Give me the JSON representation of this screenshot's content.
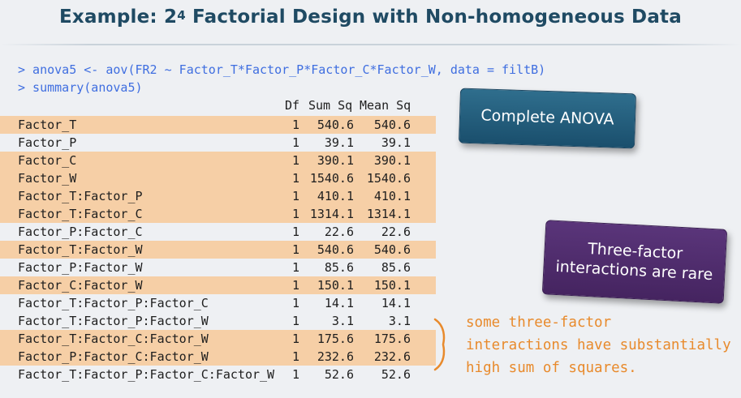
{
  "slide": {
    "title_prefix": "Example: 2",
    "title_exponent": "4",
    "title_suffix": " Factorial Design with Non-homogeneous Data"
  },
  "console": {
    "command1": "> anova5 <- aov(FR2 ~ Factor_T*Factor_P*Factor_C*Factor_W, data = filtB)",
    "command2": "> summary(anova5)",
    "columns": {
      "df": "Df",
      "sum_sq": "Sum Sq",
      "mean_sq": "Mean Sq"
    },
    "rows": [
      {
        "term": "Factor_T",
        "df": "1",
        "sum_sq": "540.6",
        "mean_sq": "540.6",
        "highlighted": true
      },
      {
        "term": "Factor_P",
        "df": "1",
        "sum_sq": "39.1",
        "mean_sq": "39.1",
        "highlighted": false
      },
      {
        "term": "Factor_C",
        "df": "1",
        "sum_sq": "390.1",
        "mean_sq": "390.1",
        "highlighted": true
      },
      {
        "term": "Factor_W",
        "df": "1",
        "sum_sq": "1540.6",
        "mean_sq": "1540.6",
        "highlighted": true
      },
      {
        "term": "Factor_T:Factor_P",
        "df": "1",
        "sum_sq": "410.1",
        "mean_sq": "410.1",
        "highlighted": true
      },
      {
        "term": "Factor_T:Factor_C",
        "df": "1",
        "sum_sq": "1314.1",
        "mean_sq": "1314.1",
        "highlighted": true
      },
      {
        "term": "Factor_P:Factor_C",
        "df": "1",
        "sum_sq": "22.6",
        "mean_sq": "22.6",
        "highlighted": false
      },
      {
        "term": "Factor_T:Factor_W",
        "df": "1",
        "sum_sq": "540.6",
        "mean_sq": "540.6",
        "highlighted": true
      },
      {
        "term": "Factor_P:Factor_W",
        "df": "1",
        "sum_sq": "85.6",
        "mean_sq": "85.6",
        "highlighted": false
      },
      {
        "term": "Factor_C:Factor_W",
        "df": "1",
        "sum_sq": "150.1",
        "mean_sq": "150.1",
        "highlighted": true
      },
      {
        "term": "Factor_T:Factor_P:Factor_C",
        "df": "1",
        "sum_sq": "14.1",
        "mean_sq": "14.1",
        "highlighted": false
      },
      {
        "term": "Factor_T:Factor_P:Factor_W",
        "df": "1",
        "sum_sq": "3.1",
        "mean_sq": "3.1",
        "highlighted": false
      },
      {
        "term": "Factor_T:Factor_C:Factor_W",
        "df": "1",
        "sum_sq": "175.6",
        "mean_sq": "175.6",
        "highlighted": true
      },
      {
        "term": "Factor_P:Factor_C:Factor_W",
        "df": "1",
        "sum_sq": "232.6",
        "mean_sq": "232.6",
        "highlighted": true
      },
      {
        "term": "Factor_T:Factor_P:Factor_C:Factor_W",
        "df": "1",
        "sum_sq": "52.6",
        "mean_sq": "52.6",
        "highlighted": false
      }
    ]
  },
  "callouts": {
    "complete_anova": "Complete ANOVA",
    "three_factor_line1": "Three-factor",
    "three_factor_line2": "interactions are rare"
  },
  "note": {
    "line1": "some three-factor",
    "line2": "interactions have substantially",
    "line3": "high sum of squares."
  },
  "colors": {
    "title": "#1f4a63",
    "code": "#3f6ee0",
    "highlight": "#f6cfa6",
    "note": "#e88a2c",
    "callout_blue": "#1f5a78",
    "callout_purple": "#4d2a6b"
  }
}
